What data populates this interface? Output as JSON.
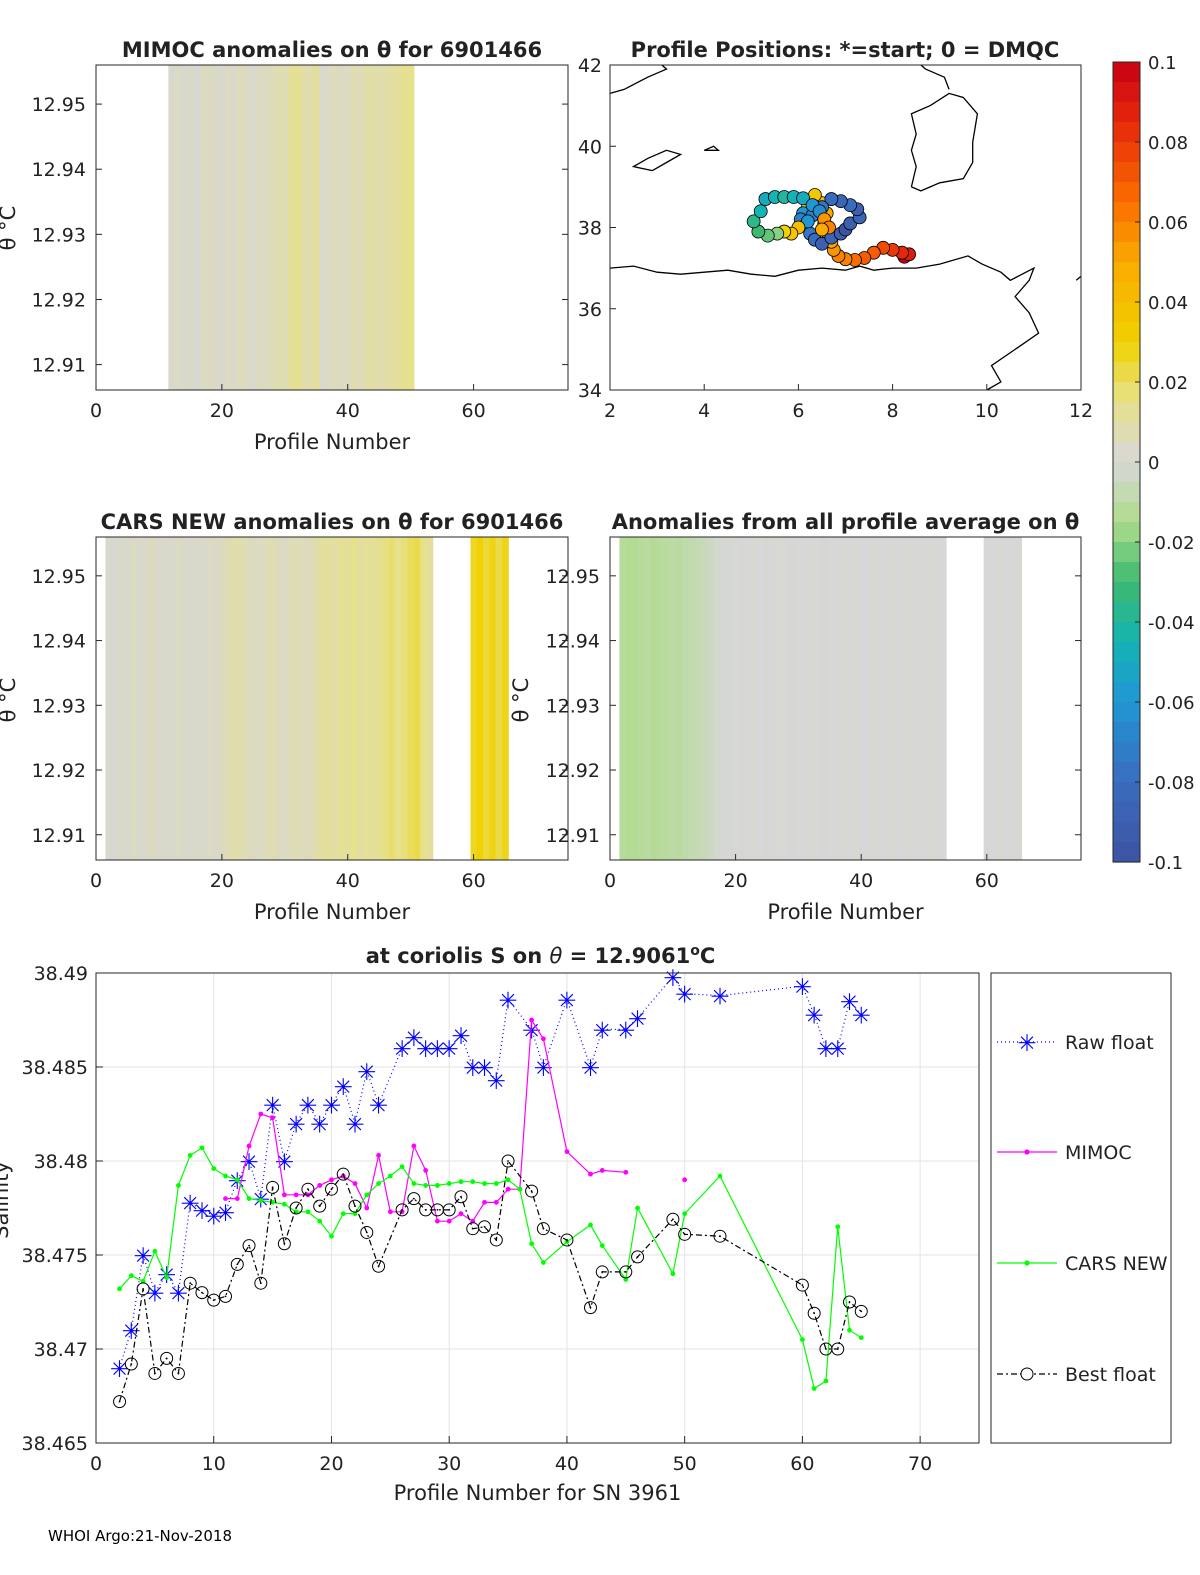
{
  "chart_data": [
    {
      "id": "mimoc",
      "type": "heatmap",
      "title": "MIMOC anomalies on θ  for 6901466",
      "xlabel": "Profile Number",
      "ylabel": "θ °C",
      "xlim": [
        0,
        75
      ],
      "ylim": [
        12.9061,
        12.956
      ],
      "xticks": [
        "0",
        "20",
        "40",
        "60"
      ],
      "yticks": [
        "12.91",
        "12.92",
        "12.93",
        "12.94",
        "12.95"
      ],
      "profiles": [
        12,
        13,
        14,
        15,
        16,
        17,
        18,
        19,
        20,
        21,
        22,
        23,
        24,
        25,
        26,
        27,
        28,
        29,
        30,
        31,
        32,
        33,
        34,
        35,
        36,
        37,
        38,
        39,
        40,
        41,
        42,
        43,
        44,
        45,
        46,
        47,
        48,
        49,
        50
      ],
      "anomalies": [
        0.002,
        0.004,
        0.002,
        0.003,
        0.001,
        0.004,
        0.005,
        0.003,
        0.002,
        0.004,
        0.003,
        0.006,
        0.004,
        0.002,
        0.005,
        0.004,
        0.006,
        0.008,
        0.007,
        0.012,
        0.014,
        0.01,
        0.008,
        0.012,
        0.002,
        0.004,
        0.006,
        0.005,
        0.004,
        0.008,
        0.006,
        0.009,
        0.01,
        0.008,
        0.009,
        0.011,
        0.012,
        0.014,
        0.015
      ]
    },
    {
      "id": "map",
      "type": "scatter",
      "title": "Profile Positions: *=start; 0 = DMQC",
      "xlim": [
        2,
        12
      ],
      "ylim": [
        34,
        42
      ],
      "xticks": [
        "2",
        "4",
        "6",
        "8",
        "10",
        "12"
      ],
      "yticks": [
        "34",
        "36",
        "38",
        "40",
        "42"
      ],
      "points": [
        {
          "lon": 8.25,
          "lat": 37.28,
          "v": 0.1
        },
        {
          "lon": 8.35,
          "lat": 37.34,
          "v": 0.09
        },
        {
          "lon": 8.2,
          "lat": 37.38,
          "v": 0.085
        },
        {
          "lon": 8.0,
          "lat": 37.45,
          "v": 0.08
        },
        {
          "lon": 7.8,
          "lat": 37.5,
          "v": 0.075
        },
        {
          "lon": 7.6,
          "lat": 37.38,
          "v": 0.07
        },
        {
          "lon": 7.4,
          "lat": 37.25,
          "v": 0.07
        },
        {
          "lon": 7.2,
          "lat": 37.2,
          "v": 0.065
        },
        {
          "lon": 7.0,
          "lat": 37.22,
          "v": 0.06
        },
        {
          "lon": 6.85,
          "lat": 37.3,
          "v": 0.06
        },
        {
          "lon": 6.75,
          "lat": 37.45,
          "v": 0.055
        },
        {
          "lon": 6.7,
          "lat": 37.65,
          "v": 0.05
        },
        {
          "lon": 6.6,
          "lat": 37.9,
          "v": 0.05
        },
        {
          "lon": 6.55,
          "lat": 38.1,
          "v": 0.045
        },
        {
          "lon": 6.6,
          "lat": 38.35,
          "v": 0.05
        },
        {
          "lon": 6.5,
          "lat": 38.6,
          "v": 0.04
        },
        {
          "lon": 6.35,
          "lat": 38.8,
          "v": 0.035
        },
        {
          "lon": 6.2,
          "lat": 38.5,
          "v": 0.03
        },
        {
          "lon": 6.1,
          "lat": 38.35,
          "v": -0.06
        },
        {
          "lon": 6.05,
          "lat": 38.2,
          "v": -0.07
        },
        {
          "lon": 6.15,
          "lat": 38.05,
          "v": -0.065
        },
        {
          "lon": 6.25,
          "lat": 37.85,
          "v": -0.075
        },
        {
          "lon": 6.35,
          "lat": 37.7,
          "v": -0.08
        },
        {
          "lon": 6.5,
          "lat": 37.6,
          "v": -0.09
        },
        {
          "lon": 6.7,
          "lat": 37.75,
          "v": -0.085
        },
        {
          "lon": 6.9,
          "lat": 37.85,
          "v": -0.09
        },
        {
          "lon": 7.0,
          "lat": 37.95,
          "v": -0.1
        },
        {
          "lon": 7.1,
          "lat": 38.1,
          "v": -0.09
        },
        {
          "lon": 7.3,
          "lat": 38.25,
          "v": -0.085
        },
        {
          "lon": 7.25,
          "lat": 38.45,
          "v": -0.09
        },
        {
          "lon": 7.1,
          "lat": 38.55,
          "v": -0.08
        },
        {
          "lon": 6.9,
          "lat": 38.65,
          "v": -0.085
        },
        {
          "lon": 6.7,
          "lat": 38.7,
          "v": -0.08
        },
        {
          "lon": 6.5,
          "lat": 38.5,
          "v": -0.075
        },
        {
          "lon": 6.3,
          "lat": 38.3,
          "v": -0.07
        },
        {
          "lon": 6.2,
          "lat": 38.15,
          "v": -0.06
        },
        {
          "lon": 6.0,
          "lat": 38.0,
          "v": 0.04
        },
        {
          "lon": 5.85,
          "lat": 37.85,
          "v": 0.035
        },
        {
          "lon": 5.7,
          "lat": 37.9,
          "v": 0.03
        },
        {
          "lon": 5.55,
          "lat": 37.85,
          "v": -0.02
        },
        {
          "lon": 5.35,
          "lat": 37.8,
          "v": -0.025
        },
        {
          "lon": 5.15,
          "lat": 37.9,
          "v": -0.03
        },
        {
          "lon": 5.05,
          "lat": 38.15,
          "v": -0.035
        },
        {
          "lon": 5.2,
          "lat": 38.4,
          "v": -0.045
        },
        {
          "lon": 5.3,
          "lat": 38.7,
          "v": -0.05
        },
        {
          "lon": 5.5,
          "lat": 38.75,
          "v": -0.045
        },
        {
          "lon": 5.7,
          "lat": 38.75,
          "v": -0.04
        },
        {
          "lon": 5.9,
          "lat": 38.75,
          "v": -0.045
        },
        {
          "lon": 6.1,
          "lat": 38.72,
          "v": -0.05
        },
        {
          "lon": 6.3,
          "lat": 38.55,
          "v": -0.06
        },
        {
          "lon": 6.45,
          "lat": 38.4,
          "v": -0.065
        },
        {
          "lon": 6.55,
          "lat": 38.2,
          "v": 0.055
        },
        {
          "lon": 6.65,
          "lat": 38.0,
          "v": 0.06
        },
        {
          "lon": 6.5,
          "lat": 37.95,
          "v": 0.05
        }
      ]
    },
    {
      "id": "colorbar",
      "type": "colorbar",
      "range": [
        -0.1,
        0.1
      ],
      "ticks": [
        "0.1",
        "0.08",
        "0.06",
        "0.04",
        "0.02",
        "0",
        "-0.02",
        "-0.04",
        "-0.06",
        "-0.08",
        "-0.1"
      ]
    },
    {
      "id": "cars",
      "type": "heatmap",
      "title": "CARS NEW anomalies on θ for 6901466",
      "xlabel": "Profile Number",
      "ylabel": "θ °C",
      "xlim": [
        0,
        75
      ],
      "ylim": [
        12.9061,
        12.956
      ],
      "xticks": [
        "0",
        "20",
        "40",
        "60"
      ],
      "yticks": [
        "12.91",
        "12.92",
        "12.93",
        "12.94",
        "12.95"
      ],
      "profiles": [
        2,
        3,
        4,
        5,
        6,
        7,
        8,
        9,
        10,
        11,
        12,
        13,
        14,
        15,
        16,
        17,
        18,
        19,
        20,
        21,
        22,
        23,
        24,
        25,
        26,
        27,
        28,
        29,
        30,
        31,
        32,
        33,
        34,
        35,
        36,
        37,
        38,
        39,
        40,
        41,
        42,
        43,
        44,
        45,
        46,
        47,
        48,
        49,
        50,
        51,
        52,
        53,
        60,
        61,
        62,
        63,
        64,
        65
      ],
      "anomalies": [
        0.002,
        0.001,
        0.003,
        0.002,
        0.004,
        0.002,
        0.003,
        0.005,
        0.002,
        0.003,
        0.002,
        0.004,
        0.003,
        0.002,
        0.003,
        0.002,
        0.004,
        0.003,
        0.005,
        0.007,
        0.009,
        0.008,
        0.006,
        0.005,
        0.004,
        0.006,
        0.008,
        0.005,
        0.004,
        0.006,
        0.007,
        0.006,
        0.005,
        0.009,
        0.011,
        0.012,
        0.01,
        0.013,
        0.012,
        0.015,
        0.011,
        0.013,
        0.012,
        0.014,
        0.016,
        0.018,
        0.015,
        0.017,
        0.02,
        0.022,
        0.015,
        0.012,
        0.026,
        0.03,
        0.024,
        0.028,
        0.022,
        0.027
      ]
    },
    {
      "id": "allavg",
      "type": "heatmap",
      "title": "Anomalies from all profile average on θ",
      "xlabel": "Profile Number",
      "ylabel": "θ °C",
      "xlim": [
        0,
        75
      ],
      "ylim": [
        12.9061,
        12.956
      ],
      "xticks": [
        "0",
        "20",
        "40",
        "60"
      ],
      "yticks": [
        "12.91",
        "12.92",
        "12.93",
        "12.94",
        "12.95"
      ],
      "profiles": [
        2,
        3,
        4,
        5,
        6,
        7,
        8,
        9,
        10,
        11,
        12,
        13,
        14,
        15,
        16,
        17,
        18,
        19,
        20,
        21,
        22,
        23,
        24,
        25,
        26,
        27,
        28,
        29,
        30,
        31,
        32,
        33,
        34,
        35,
        36,
        37,
        38,
        39,
        40,
        41,
        42,
        43,
        44,
        45,
        46,
        47,
        48,
        49,
        50,
        51,
        52,
        53,
        60,
        61,
        62,
        63,
        64,
        65
      ],
      "anomalies": [
        -0.012,
        -0.014,
        -0.013,
        -0.012,
        -0.011,
        -0.013,
        -0.012,
        -0.011,
        -0.01,
        -0.011,
        -0.009,
        -0.008,
        -0.007,
        -0.006,
        -0.004,
        -0.002,
        -0.001,
        -0.001,
        0.0,
        -0.001,
        0.0,
        0.001,
        0.0,
        -0.001,
        0.0,
        0.001,
        0.0,
        -0.001,
        0.0,
        0.0,
        0.001,
        0.0,
        -0.001,
        0.0,
        0.0,
        0.001,
        0.0,
        0.001,
        0.0,
        0.0,
        0.001,
        0.0,
        0.0,
        0.001,
        0.0,
        0.0,
        0.001,
        0.0,
        0.0,
        0.001,
        0.0,
        0.0,
        0.0,
        0.0,
        0.001,
        0.0,
        0.0,
        0.001
      ]
    },
    {
      "id": "salinity",
      "type": "line",
      "title": "at coriolis S on θ = 12.9061°C",
      "title_main": "at coriolis S on ",
      "title_theta": "θ",
      "title_eq": " = 12.9061",
      "title_deg": "o",
      "title_unit": "C",
      "xlabel": "Profile Number for SN 3961",
      "ylabel": "Salinity",
      "xlim": [
        0,
        75
      ],
      "ylim": [
        38.465,
        38.49
      ],
      "xticks": [
        "0",
        "10",
        "20",
        "30",
        "40",
        "50",
        "60",
        "70"
      ],
      "yticks": [
        "38.465",
        "38.47",
        "38.475",
        "38.48",
        "38.485",
        "38.49"
      ],
      "series": [
        {
          "name": "Raw float",
          "color": "#0000ff",
          "marker": "star",
          "dash": "1 3",
          "x": [
            2,
            3,
            4,
            5,
            6,
            7,
            8,
            9,
            10,
            11,
            12,
            13,
            14,
            15,
            16,
            17,
            18,
            19,
            20,
            21,
            22,
            23,
            24,
            26,
            27,
            28,
            29,
            30,
            31,
            32,
            33,
            34,
            35,
            37,
            38,
            40,
            42,
            43,
            45,
            46,
            49,
            50,
            53,
            60,
            61,
            62,
            63,
            64,
            65
          ],
          "y": [
            38.469,
            38.471,
            38.475,
            38.473,
            38.474,
            38.473,
            38.4778,
            38.4774,
            38.4771,
            38.4773,
            38.479,
            38.48,
            38.478,
            38.483,
            38.48,
            38.482,
            38.483,
            38.482,
            38.483,
            38.484,
            38.482,
            38.4848,
            38.483,
            38.486,
            38.4866,
            38.486,
            38.486,
            38.486,
            38.4867,
            38.485,
            38.485,
            38.4843,
            38.4886,
            38.487,
            38.485,
            38.4886,
            38.485,
            38.487,
            38.487,
            38.4876,
            38.4898,
            38.4889,
            38.4888,
            38.4893,
            38.4878,
            38.486,
            38.486,
            38.4885,
            38.4878
          ]
        },
        {
          "name": "MIMOC",
          "color": "#ff00ff",
          "marker": "dot",
          "dash": "",
          "x": [
            11,
            12,
            13,
            14,
            15,
            16,
            17,
            18,
            19,
            20,
            21,
            22,
            23,
            24,
            25,
            26,
            27,
            28,
            29,
            30,
            31,
            32,
            33,
            34,
            35,
            36,
            37,
            38,
            40,
            42,
            43,
            45,
            null,
            50
          ],
          "y": [
            38.478,
            38.478,
            38.4808,
            38.4825,
            38.4823,
            38.4782,
            38.4782,
            38.4782,
            38.4787,
            38.479,
            38.4792,
            38.4788,
            38.4775,
            38.4803,
            38.4773,
            38.4773,
            38.4808,
            38.4795,
            38.4768,
            38.4768,
            38.4772,
            38.4768,
            38.4778,
            38.4778,
            38.4785,
            38.4785,
            38.4875,
            38.4865,
            38.4805,
            38.4793,
            38.4795,
            38.4794,
            null,
            38.479
          ]
        },
        {
          "name": "CARS NEW",
          "color": "#00ff00",
          "marker": "dot",
          "dash": "",
          "x": [
            2,
            3,
            4,
            5,
            6,
            7,
            8,
            9,
            10,
            11,
            12,
            13,
            14,
            15,
            16,
            17,
            18,
            19,
            20,
            21,
            22,
            23,
            24,
            25,
            26,
            27,
            28,
            29,
            30,
            31,
            32,
            33,
            34,
            35,
            36,
            37,
            38,
            40,
            42,
            43,
            45,
            46,
            49,
            50,
            53,
            60,
            61,
            62,
            63,
            64,
            65
          ],
          "y": [
            38.4732,
            38.4739,
            38.4736,
            38.4752,
            38.4738,
            38.4787,
            38.4803,
            38.4807,
            38.4796,
            38.4792,
            38.479,
            38.478,
            38.4779,
            38.4778,
            38.4777,
            38.4773,
            38.4773,
            38.4768,
            38.476,
            38.4772,
            38.4772,
            38.4782,
            38.4788,
            38.4792,
            38.4797,
            38.4788,
            38.4787,
            38.4787,
            38.4788,
            38.4789,
            38.4789,
            38.4788,
            38.4788,
            38.479,
            38.4785,
            38.4756,
            38.4746,
            38.4757,
            38.4766,
            38.4755,
            38.4737,
            38.4775,
            38.474,
            38.4772,
            38.4792,
            38.4705,
            38.4679,
            38.4683,
            38.4765,
            38.471,
            38.4706
          ]
        },
        {
          "name": "Best float",
          "color": "#000000",
          "marker": "circle",
          "dash": "6 3 2 3",
          "x": [
            2,
            3,
            4,
            5,
            6,
            7,
            8,
            9,
            10,
            11,
            12,
            13,
            14,
            15,
            16,
            17,
            18,
            19,
            20,
            21,
            22,
            23,
            24,
            26,
            27,
            28,
            29,
            30,
            31,
            32,
            33,
            34,
            35,
            37,
            38,
            40,
            42,
            43,
            45,
            46,
            49,
            50,
            53,
            60,
            61,
            62,
            63,
            64,
            65
          ],
          "y": [
            38.4672,
            38.4692,
            38.4732,
            38.4687,
            38.4695,
            38.4687,
            38.4735,
            38.473,
            38.4726,
            38.4728,
            38.4745,
            38.4755,
            38.4735,
            38.4786,
            38.4756,
            38.4775,
            38.4785,
            38.4776,
            38.4785,
            38.4793,
            38.4776,
            38.4762,
            38.4744,
            38.4774,
            38.478,
            38.4774,
            38.4774,
            38.4774,
            38.4781,
            38.4764,
            38.4765,
            38.4758,
            38.48,
            38.4784,
            38.4764,
            38.4758,
            38.4722,
            38.4741,
            38.4741,
            38.4749,
            38.4769,
            38.4761,
            38.476,
            38.4734,
            38.4719,
            38.47,
            38.47,
            38.4725,
            38.472
          ]
        }
      ],
      "legend": [
        "Raw float",
        "MIMOC",
        "CARS NEW",
        "Best float"
      ]
    }
  ],
  "footer": "WHOI Argo:21-Nov-2018"
}
